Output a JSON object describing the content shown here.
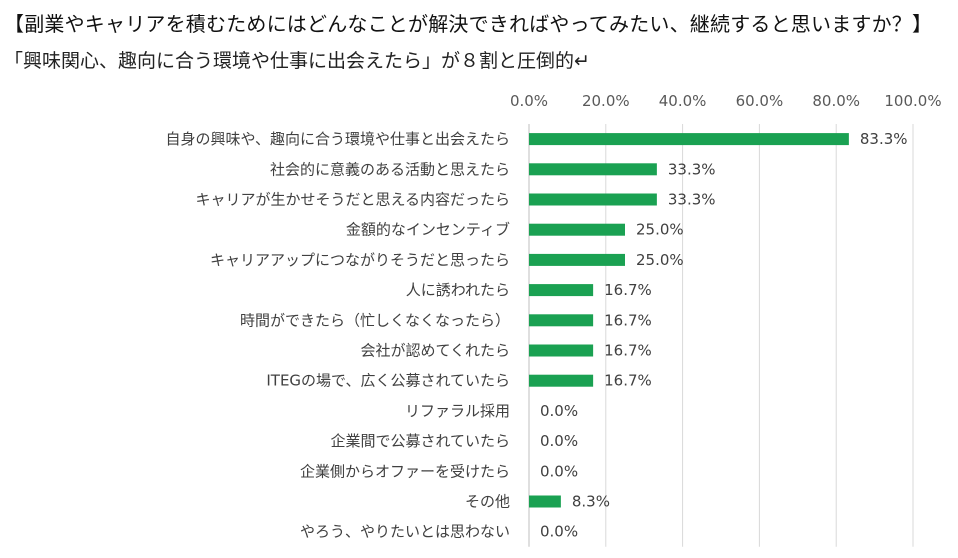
{
  "title": "【副業やキャリアを積むためにはどんなことが解決できればやってみたい、継続すると思いますか？】",
  "subtitle": "「興味関心、趣向に合う環境や仕事に出会えたら」が８割と圧倒的↵",
  "chart_data": {
    "type": "bar",
    "orientation": "horizontal",
    "title": "",
    "xlabel": "",
    "ylabel": "",
    "xlim": [
      0,
      100
    ],
    "ticks": [
      "0.0%",
      "20.0%",
      "40.0%",
      "60.0%",
      "80.0%",
      "100.0%"
    ],
    "tick_values": [
      0,
      20,
      40,
      60,
      80,
      100
    ],
    "grid": true,
    "legend": "none",
    "bar_color": "#1aa152",
    "categories": [
      "自身の興味や、趣向に合う環境や仕事と出会えたら",
      "社会的に意義のある活動と思えたら",
      "キャリアが生かせそうだと思える内容だったら",
      "金額的なインセンティブ",
      "キャリアアップにつながりそうだと思ったら",
      "人に誘われたら",
      "時間ができたら（忙しくなくなったら）",
      "会社が認めてくれたら",
      "ITEGの場で、広く公募されていたら",
      "リファラル採用",
      "企業間で公募されていたら",
      "企業側からオファーを受けたら",
      "その他",
      "やろう、やりたいとは思わない"
    ],
    "values": [
      83.3,
      33.3,
      33.3,
      25.0,
      25.0,
      16.7,
      16.7,
      16.7,
      16.7,
      0.0,
      0.0,
      0.0,
      8.3,
      0.0
    ],
    "labels": [
      "83.3%",
      "33.3%",
      "33.3%",
      "25.0%",
      "25.0%",
      "16.7%",
      "16.7%",
      "16.7%",
      "16.7%",
      "0.0%",
      "0.0%",
      "0.0%",
      "8.3%",
      "0.0%"
    ]
  }
}
